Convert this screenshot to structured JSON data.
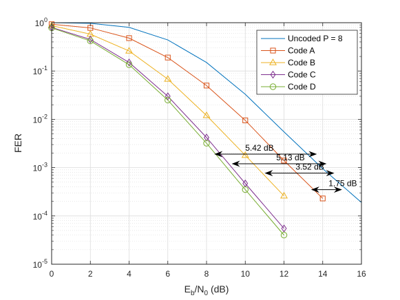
{
  "chart_data": {
    "type": "line",
    "title": "",
    "xlabel": {
      "main": "E",
      "sub1": "b",
      "mid": "/N",
      "sub2": "0",
      "tail": " (dB)"
    },
    "ylabel": "FER",
    "xlim": [
      0,
      16
    ],
    "ylim": [
      1e-05,
      1
    ],
    "yscale": "log",
    "grid": true,
    "minor_grid": true,
    "legend_position": "top-right",
    "xticks": [
      {
        "value": 0,
        "label": "0"
      },
      {
        "value": 2,
        "label": "2"
      },
      {
        "value": 4,
        "label": "4"
      },
      {
        "value": 6,
        "label": "6"
      },
      {
        "value": 8,
        "label": "8"
      },
      {
        "value": 10,
        "label": "10"
      },
      {
        "value": 12,
        "label": "12"
      },
      {
        "value": 14,
        "label": "14"
      },
      {
        "value": 16,
        "label": "16"
      }
    ],
    "yticks": [
      {
        "value": 1e-05,
        "base": "10",
        "exp": "-5"
      },
      {
        "value": 0.0001,
        "base": "10",
        "exp": "-4"
      },
      {
        "value": 0.001,
        "base": "10",
        "exp": "-3"
      },
      {
        "value": 0.01,
        "base": "10",
        "exp": "-2"
      },
      {
        "value": 0.1,
        "base": "10",
        "exp": "-1"
      },
      {
        "value": 1,
        "base": "10",
        "exp": "0"
      }
    ],
    "series": [
      {
        "name": "Uncoded P = 8",
        "color": "#0072bd",
        "marker": "none",
        "x": [
          0,
          2,
          4,
          6,
          8,
          10,
          12,
          14,
          16
        ],
        "y": [
          1.0,
          0.97,
          0.8,
          0.44,
          0.15,
          0.033,
          0.0055,
          0.00095,
          0.00019
        ]
      },
      {
        "name": "Code A",
        "color": "#d95319",
        "marker": "square",
        "x": [
          0,
          2,
          4,
          6,
          8,
          10,
          12,
          14
        ],
        "y": [
          0.93,
          0.78,
          0.48,
          0.19,
          0.05,
          0.0095,
          0.0014,
          0.00023
        ]
      },
      {
        "name": "Code B",
        "color": "#edb120",
        "marker": "triangle",
        "x": [
          0,
          2,
          4,
          6,
          8,
          10,
          12
        ],
        "y": [
          0.87,
          0.58,
          0.26,
          0.068,
          0.012,
          0.0018,
          0.00026
        ]
      },
      {
        "name": "Code C",
        "color": "#7e2f8e",
        "marker": "diamond",
        "x": [
          0,
          2,
          4,
          6,
          8,
          10,
          12
        ],
        "y": [
          0.8,
          0.45,
          0.15,
          0.03,
          0.0042,
          0.00047,
          5.5e-05
        ]
      },
      {
        "name": "Code D",
        "color": "#77ac30",
        "marker": "circle",
        "x": [
          0,
          2,
          4,
          6,
          8,
          10,
          12
        ],
        "y": [
          0.78,
          0.42,
          0.135,
          0.025,
          0.0032,
          0.00035,
          4e-05
        ]
      }
    ],
    "annotations": [
      {
        "text": "5.42 dB",
        "x_start": 8.4,
        "x_end": 13.7,
        "y": 0.0019,
        "label_x": 10.0
      },
      {
        "text": "5.13 dB",
        "x_start": 9.3,
        "x_end": 14.2,
        "y": 0.0012,
        "label_x": 11.6
      },
      {
        "text": "3.52 dB",
        "x_start": 11.0,
        "x_end": 14.6,
        "y": 0.00077,
        "label_x": 12.6
      },
      {
        "text": "1.75 dB",
        "x_start": 13.4,
        "x_end": 15.0,
        "y": 0.00035,
        "label_x": 14.3
      }
    ]
  }
}
